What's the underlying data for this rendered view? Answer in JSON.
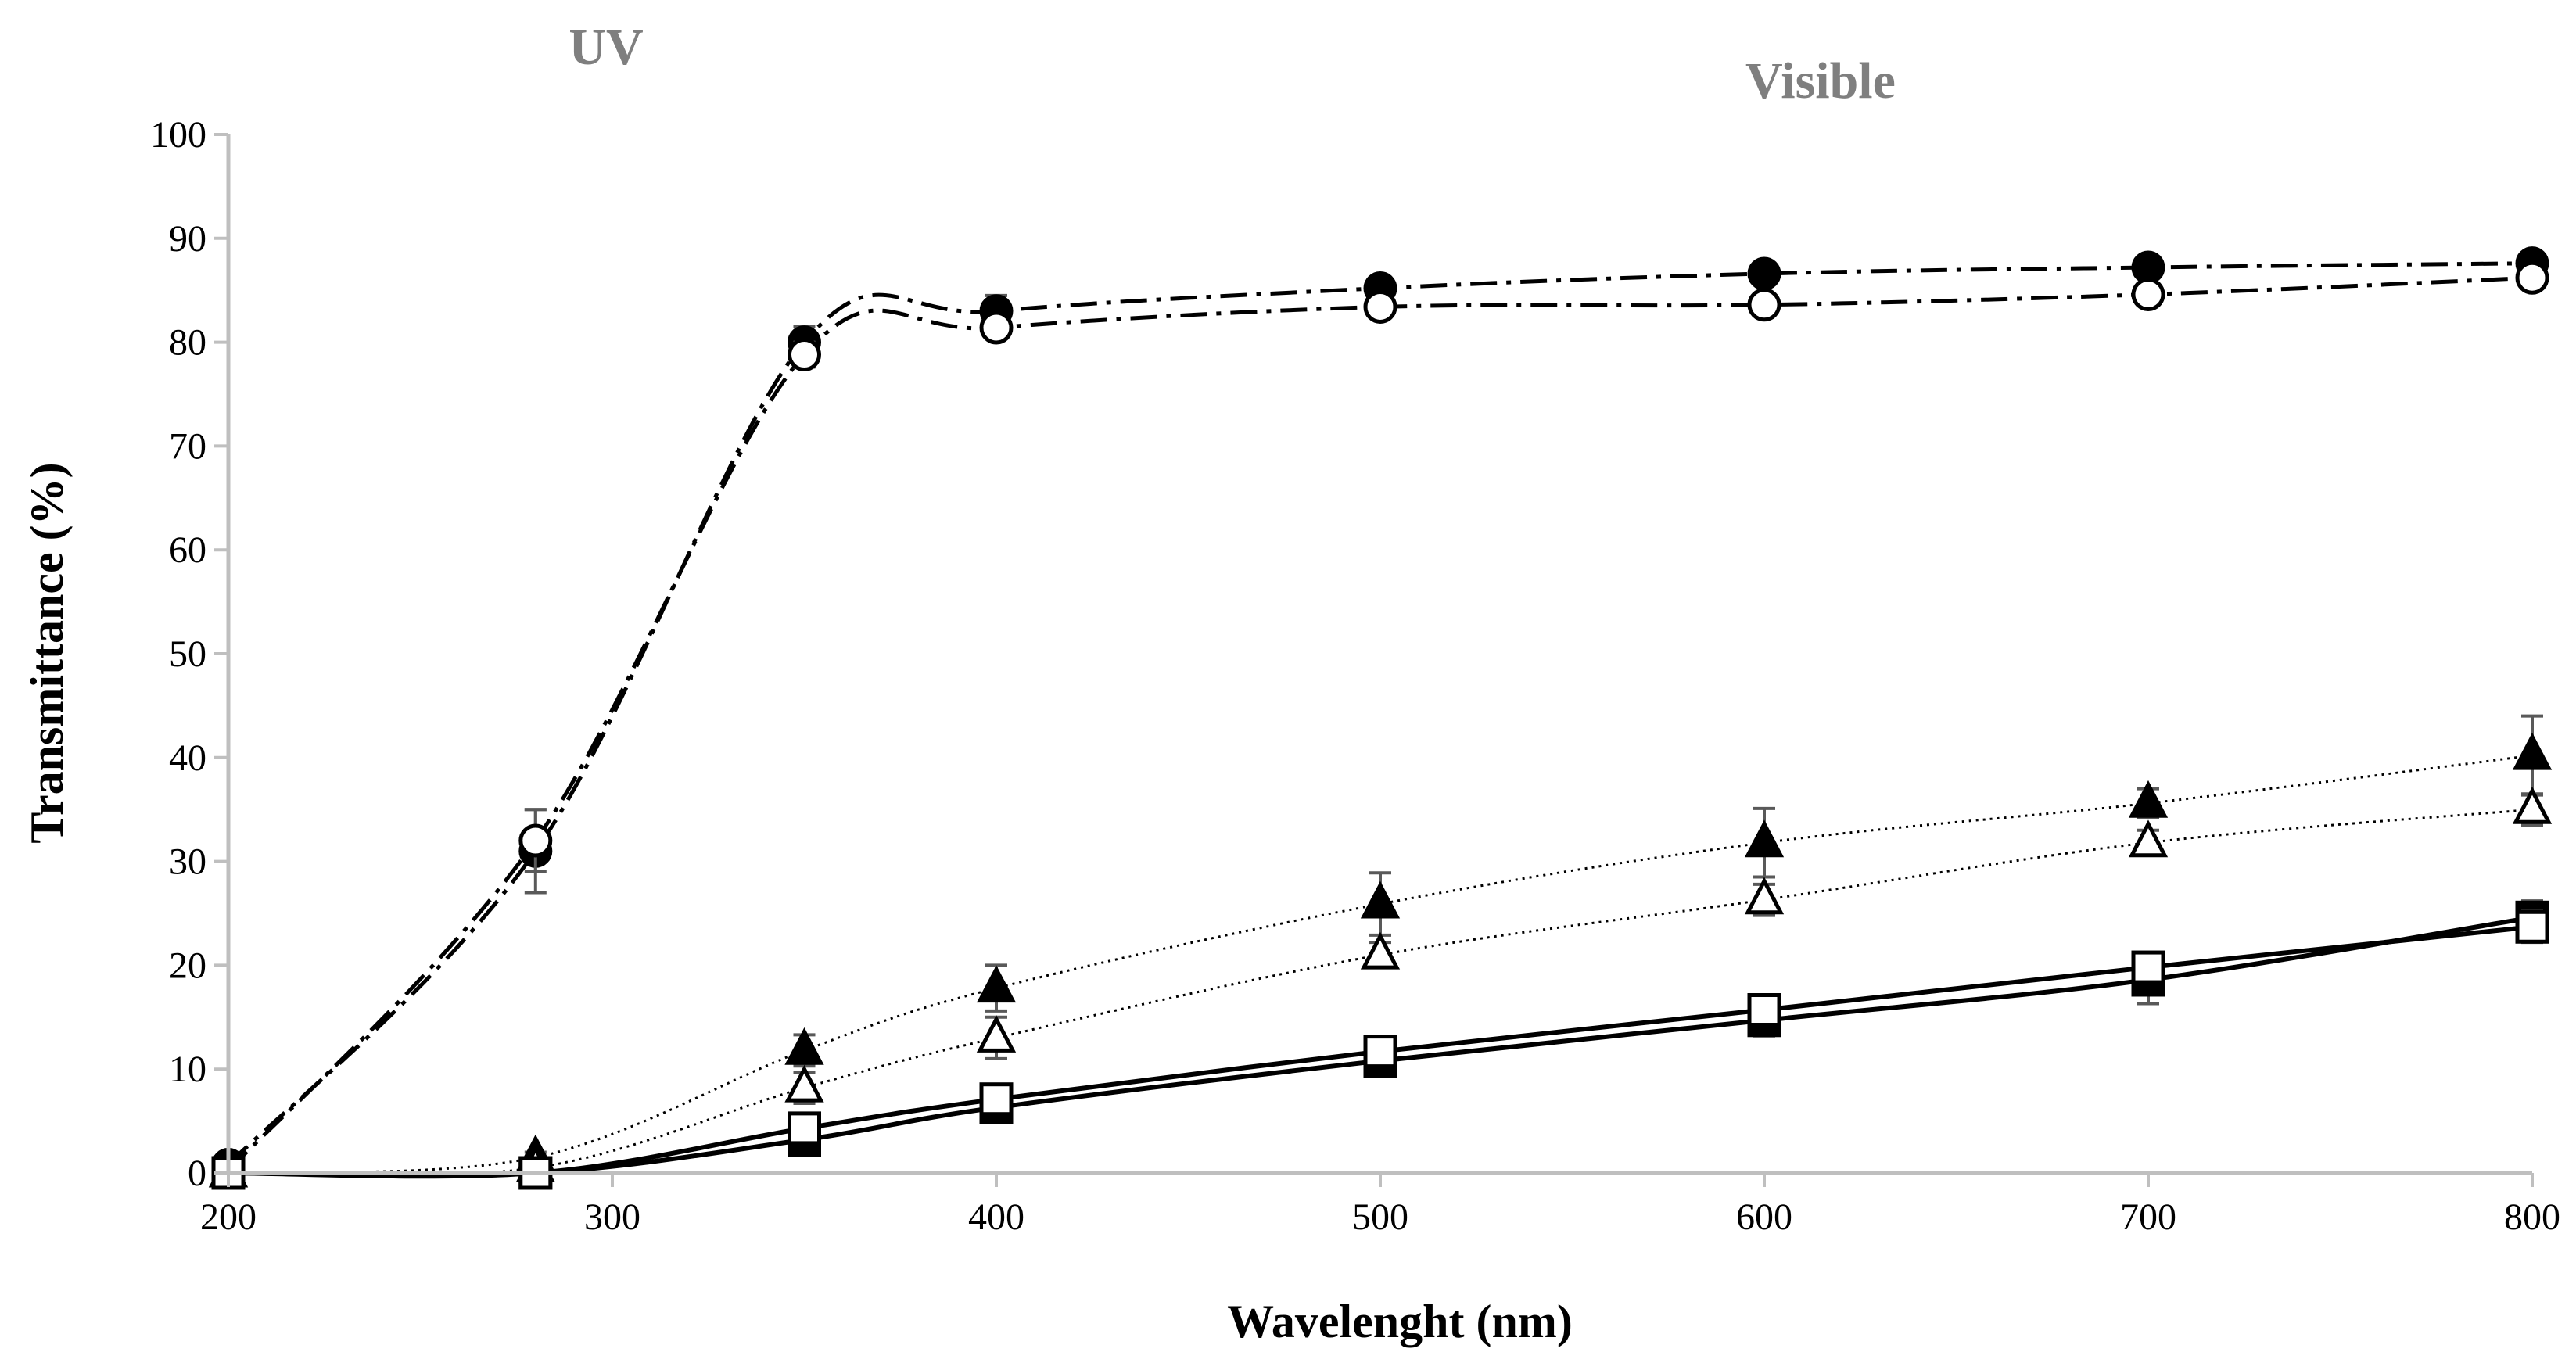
{
  "chart_data": {
    "type": "line",
    "title": "",
    "xlabel": "Wavelenght (nm)",
    "ylabel": "Transmittance (%)",
    "xlim": [
      200,
      800
    ],
    "ylim": [
      0,
      100
    ],
    "x_ticks": [
      200,
      300,
      400,
      500,
      600,
      700,
      800
    ],
    "y_ticks": [
      0,
      10,
      20,
      30,
      40,
      50,
      60,
      70,
      80,
      90,
      100
    ],
    "grid": false,
    "legend": "none",
    "annotations": [
      {
        "text": "UV",
        "x": 300,
        "y_above_plot": true
      },
      {
        "text": "Visible",
        "x": 595,
        "y_above_plot": true
      }
    ],
    "colors": {
      "axis": "#bfbfbf",
      "errorbar": "#595959",
      "series": "#000000",
      "region_label": "#7f7f7f"
    },
    "series": [
      {
        "name": "filled-circle",
        "marker": "circle",
        "filled": true,
        "line_style": "dash-dot",
        "x": [
          200,
          280,
          350,
          400,
          500,
          600,
          700,
          800
        ],
        "y": [
          0.8,
          31.0,
          80.0,
          83.0,
          85.2,
          86.6,
          87.2,
          87.6
        ],
        "err": [
          0,
          4.0,
          1.5,
          1.5,
          0.8,
          0.7,
          0.6,
          0.5
        ]
      },
      {
        "name": "open-circle",
        "marker": "circle",
        "filled": false,
        "line_style": "dash-dot",
        "x": [
          200,
          280,
          350,
          400,
          500,
          600,
          700,
          800
        ],
        "y": [
          0.2,
          32.0,
          78.8,
          81.4,
          83.4,
          83.6,
          84.6,
          86.2
        ],
        "err": [
          0,
          3.0,
          1.2,
          1.0,
          0.8,
          0.6,
          0.6,
          0.5
        ]
      },
      {
        "name": "filled-triangle",
        "marker": "triangle",
        "filled": true,
        "line_style": "dotted",
        "x": [
          200,
          280,
          350,
          400,
          500,
          600,
          700,
          800
        ],
        "y": [
          0,
          1.5,
          11.8,
          17.8,
          25.9,
          31.8,
          35.6,
          40.2
        ],
        "err": [
          0,
          0.5,
          1.5,
          2.2,
          3.0,
          3.3,
          1.4,
          3.8
        ]
      },
      {
        "name": "open-triangle",
        "marker": "triangle",
        "filled": false,
        "line_style": "dotted",
        "x": [
          200,
          280,
          350,
          400,
          500,
          600,
          700,
          800
        ],
        "y": [
          0,
          0.5,
          8.2,
          13.0,
          21.0,
          26.3,
          31.8,
          35.0
        ],
        "err": [
          0,
          0.4,
          1.5,
          2.0,
          1.2,
          1.5,
          1.2,
          1.5
        ]
      },
      {
        "name": "filled-square",
        "marker": "square",
        "filled": true,
        "line_style": "solid",
        "x": [
          200,
          280,
          350,
          400,
          500,
          600,
          700,
          800
        ],
        "y": [
          0,
          0,
          3.2,
          6.3,
          10.8,
          14.7,
          18.6,
          24.6
        ],
        "err": [
          0,
          0,
          0.5,
          0.6,
          0.6,
          1.5,
          2.3,
          1.6
        ]
      },
      {
        "name": "open-square",
        "marker": "square",
        "filled": false,
        "line_style": "solid",
        "x": [
          200,
          280,
          350,
          400,
          500,
          600,
          700,
          800
        ],
        "y": [
          0,
          0,
          4.3,
          7.1,
          11.7,
          15.7,
          19.8,
          23.7
        ],
        "err": [
          0,
          0,
          0.5,
          0.6,
          0.7,
          1.0,
          1.2,
          1.5
        ]
      }
    ]
  }
}
